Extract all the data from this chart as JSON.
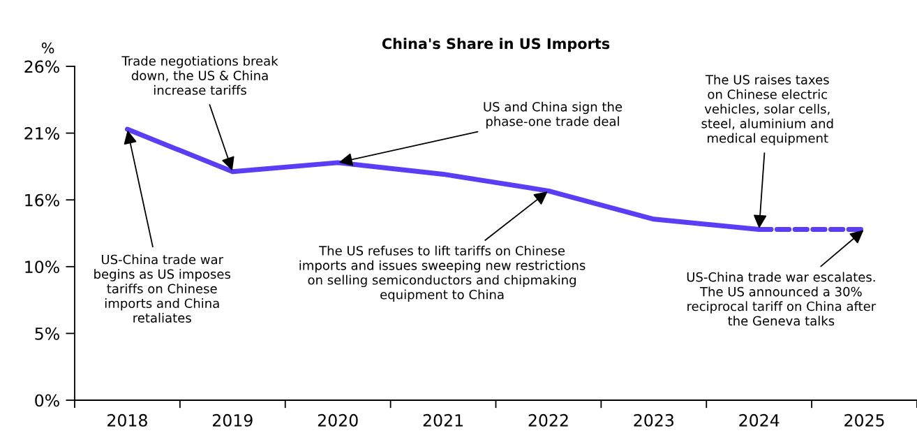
{
  "chart_data": {
    "type": "line",
    "title": "China's Share in US Imports",
    "ylabel": "%",
    "categories": [
      "2018",
      "2019",
      "2020",
      "2021",
      "2022",
      "2023",
      "2024",
      "2025"
    ],
    "series": [
      {
        "color": "#5b3df5",
        "line_style": "solid",
        "values": [
          21.1,
          17.8,
          18.5,
          17.6,
          16.3,
          14.1,
          13.3,
          null
        ]
      },
      {
        "color": "#5b3df5",
        "line_style": "dashed",
        "values": [
          null,
          null,
          null,
          null,
          null,
          null,
          13.3,
          13.3
        ]
      }
    ],
    "ylim": [
      0,
      26
    ],
    "yticks": [
      {
        "value": 0,
        "label": "0%"
      },
      {
        "value": 5.2,
        "label": "5%"
      },
      {
        "value": 10.4,
        "label": "10%"
      },
      {
        "value": 15.6,
        "label": "16%"
      },
      {
        "value": 20.8,
        "label": "21%"
      },
      {
        "value": 26,
        "label": "26%"
      }
    ],
    "grid": false,
    "legend": false,
    "marker": "none",
    "annotations": [
      {
        "text": "Trade negotiations break\ndown, the US & China\nincrease tariffs",
        "x": "2019",
        "y": 17.8
      },
      {
        "text": "US-China trade war\nbegins as US imposes\ntariffs on Chinese\nimports and China\nretaliates",
        "x": "2018",
        "y": 21.1
      },
      {
        "text": "US and China sign the\nphase-one trade deal",
        "x": "2020",
        "y": 18.5
      },
      {
        "text": "The US refuses to lift tariffs on Chinese\nimports and issues sweeping new restrictions\non selling semiconductors and chipmaking\nequipment to China",
        "x": "2022",
        "y": 16.3
      },
      {
        "text": "The US raises taxes\non Chinese electric\nvehicles, solar cells,\nsteel, aluminium and\nmedical equipment",
        "x": "2024",
        "y": 13.3
      },
      {
        "text": "US-China trade war escalates.\nThe US announced a 30%\nreciprocal tariff on China after\nthe Geneva talks",
        "x": "2025",
        "y": 13.3
      }
    ]
  }
}
